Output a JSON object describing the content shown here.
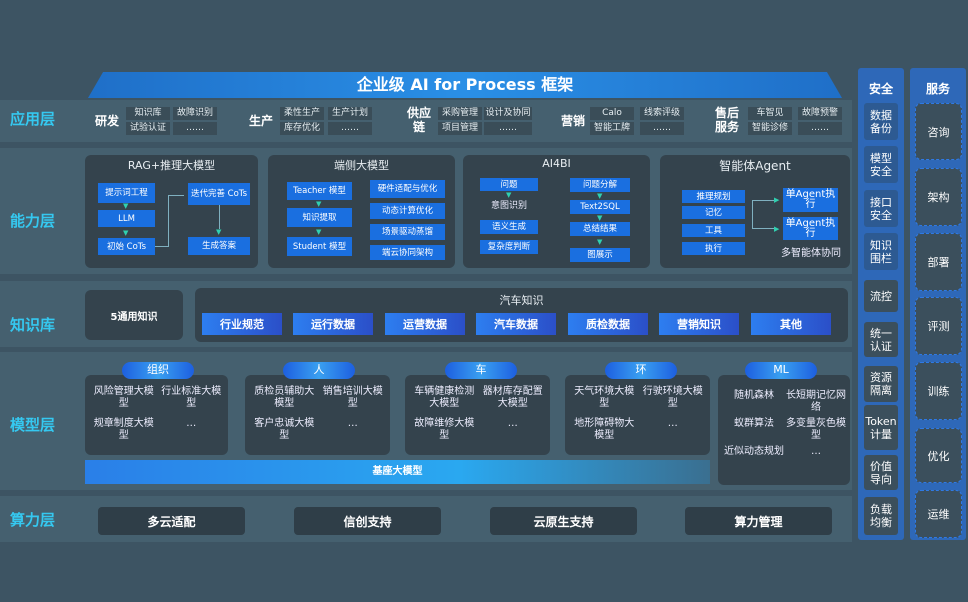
{
  "title": "企业级 AI for Process 框架",
  "layers": {
    "app": "应用层",
    "capability": "能力层",
    "knowledge": "知识库",
    "model": "模型层",
    "compute": "算力层"
  },
  "app": [
    {
      "name": "研发",
      "cells": [
        "知识库",
        "试验认证",
        "故障识别",
        "……"
      ]
    },
    {
      "name": "生产",
      "cells": [
        "柔性生产",
        "库存优化",
        "生产计划",
        "……"
      ]
    },
    {
      "name": "供应链",
      "cells": [
        "采购管理",
        "项目管理",
        "设计及协同",
        "……"
      ]
    },
    {
      "name": "营销",
      "cells": [
        "Calo",
        "智能工牌",
        "线索评级",
        "……"
      ]
    },
    {
      "name": "售后服务",
      "cells": [
        "车智见",
        "智能诊修",
        "故障预警",
        "……"
      ]
    }
  ],
  "capability": {
    "rag": {
      "title": "RAG+推理大模型",
      "steps": [
        "提示词工程",
        "LLM",
        "初始 CoTs",
        "迭代完善 CoTs",
        "生成答案"
      ]
    },
    "edge": {
      "title": "端侧大模型",
      "steps": [
        "Teacher 模型",
        "知识提取",
        "Student 模型"
      ],
      "features": [
        "硬件适配与优化",
        "动态计算优化",
        "场景驱动蒸馏",
        "端云协同架构"
      ]
    },
    "ai4bi": {
      "title": "AI4BI",
      "left": [
        "问题",
        "意图识别",
        "语义生成",
        "复杂度判断"
      ],
      "right": [
        "问题分解",
        "Text2SQL",
        "总结结果",
        "图展示"
      ]
    },
    "agent": {
      "title": "智能体Agent",
      "items": [
        "推理规划",
        "记忆",
        "工具",
        "执行"
      ],
      "exec": [
        "单Agent执行",
        "单Agent执行"
      ],
      "footer": "多智能体协同"
    }
  },
  "knowledge": {
    "general": "5通用知识",
    "auto_title": "汽车知识",
    "chips": [
      "行业规范",
      "运行数据",
      "运营数据",
      "汽车数据",
      "质检数据",
      "营销知识",
      "其他"
    ]
  },
  "models": [
    {
      "tag": "组织",
      "items": [
        "风险管理大模型",
        "行业标准大模型",
        "规章制度大模型",
        "…"
      ]
    },
    {
      "tag": "人",
      "items": [
        "质检员辅助大模型",
        "销售培训大模型",
        "客户忠诚大模型",
        "…"
      ]
    },
    {
      "tag": "车",
      "items": [
        "车辆健康检测大模型",
        "器材库存配置大模型",
        "故障维修大模型",
        "…"
      ]
    },
    {
      "tag": "环",
      "items": [
        "天气环境大模型",
        "行驶环境大模型",
        "地形障碍物大模型",
        "…"
      ]
    },
    {
      "tag": "ML",
      "items": [
        "随机森林",
        "长短期记忆网络",
        "蚁群算法",
        "多变量灰色模型",
        "近似动态规划",
        "…"
      ]
    }
  ],
  "base_model": "基座大模型",
  "compute": [
    "多云适配",
    "信创支持",
    "云原生支持",
    "算力管理"
  ],
  "security": {
    "title": "安全",
    "items": [
      "数据备份",
      "模型安全",
      "接口安全",
      "知识围栏",
      "流控",
      "统一认证",
      "资源隔离",
      "Token计量",
      "价值导向",
      "负载均衡"
    ]
  },
  "services": {
    "title": "服务",
    "items": [
      "咨询",
      "架构",
      "部署",
      "评测",
      "训练",
      "优化",
      "运维"
    ]
  },
  "colors": {
    "background": "#3d5463",
    "accent": "#35c8f0",
    "box_blue": "#1a6fe0"
  }
}
